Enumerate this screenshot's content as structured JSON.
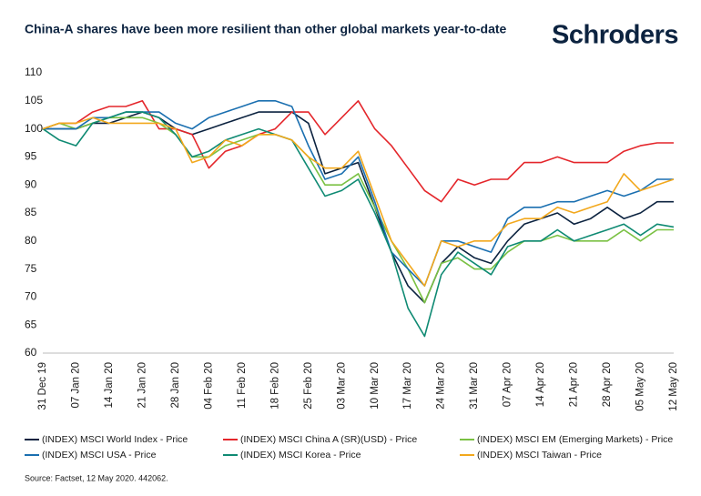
{
  "chart_data": {
    "type": "line",
    "title": "China-A shares have been more resilient than other global markets year-to-date",
    "logo": "Schroders",
    "source": "Source: Factset, 12 May 2020. 442062.",
    "categories": [
      "31 Dec 19",
      null,
      "07 Jan 20",
      null,
      "14 Jan 20",
      null,
      "21 Jan 20",
      null,
      "28 Jan 20",
      null,
      "04 Feb 20",
      null,
      "11 Feb 20",
      null,
      "18 Feb 20",
      null,
      "25 Feb 20",
      null,
      "03 Mar 20",
      null,
      "10 Mar 20",
      null,
      "17 Mar 20",
      null,
      "24 Mar 20",
      null,
      "31 Mar 20",
      null,
      "07 Apr 20",
      null,
      "14 Apr 20",
      null,
      "21 Apr 20",
      null,
      "28 Apr 20",
      null,
      "05 May 20",
      null,
      "12 May 20"
    ],
    "ylim": [
      60,
      110
    ],
    "yticks": [
      60,
      65,
      70,
      75,
      80,
      85,
      90,
      95,
      100,
      105,
      110
    ],
    "grid": false,
    "legend": "bottom",
    "series": [
      {
        "name": "(INDEX) MSCI World Index - Price",
        "color": "#0c2340",
        "values": [
          100,
          100,
          100,
          101,
          101,
          102,
          103,
          102,
          100,
          99,
          100,
          101,
          102,
          103,
          103,
          103,
          101,
          92,
          93,
          94,
          86,
          78,
          72,
          69,
          76,
          79,
          77,
          76,
          80,
          83,
          84,
          85,
          83,
          84,
          86,
          84,
          85,
          87,
          87
        ]
      },
      {
        "name": "(INDEX) MSCI China A (SR)(USD) - Price",
        "color": "#e4262b",
        "values": [
          100,
          101,
          101,
          103,
          104,
          104,
          105,
          100,
          100,
          99,
          93,
          96,
          97,
          99,
          100,
          103,
          103,
          99,
          102,
          105,
          100,
          97,
          93,
          89,
          87,
          91,
          90,
          91,
          91,
          94,
          94,
          95,
          94,
          94,
          94,
          96,
          97,
          97.5,
          97.5
        ]
      },
      {
        "name": "(INDEX) MSCI EM (Emerging Markets) - Price",
        "color": "#7ac143",
        "values": [
          100,
          101,
          100,
          101,
          102,
          102,
          102,
          101,
          99,
          95,
          95,
          97,
          98,
          99,
          99,
          98,
          95,
          90,
          90,
          92,
          86,
          80,
          75,
          69,
          76,
          77,
          75,
          75,
          78,
          80,
          80,
          81,
          80,
          80,
          80,
          82,
          80,
          82,
          82
        ]
      },
      {
        "name": "(INDEX) MSCI USA - Price",
        "color": "#1a6fb0",
        "values": [
          100,
          100,
          100,
          102,
          102,
          103,
          103,
          103,
          101,
          100,
          102,
          103,
          104,
          105,
          105,
          104,
          97,
          91,
          92,
          95,
          87,
          78,
          75,
          72,
          80,
          80,
          79,
          78,
          84,
          86,
          86,
          87,
          87,
          88,
          89,
          88,
          89,
          91,
          91
        ]
      },
      {
        "name": "(INDEX) MSCI Korea - Price",
        "color": "#0f8a73",
        "values": [
          100,
          98,
          97,
          101,
          102,
          103,
          103,
          102,
          99,
          95,
          96,
          98,
          99,
          100,
          99,
          98,
          93,
          88,
          89,
          91,
          85,
          78,
          68,
          63,
          74,
          78,
          76,
          74,
          79,
          80,
          80,
          82,
          80,
          81,
          82,
          83,
          81,
          83,
          82.5
        ]
      },
      {
        "name": "(INDEX) MSCI Taiwan - Price",
        "color": "#f2a81d",
        "values": [
          100,
          101,
          101,
          102,
          101,
          101,
          101,
          101,
          100,
          94,
          95,
          98,
          97,
          99,
          99,
          98,
          95,
          93,
          93,
          96,
          88,
          80,
          76,
          72,
          80,
          79,
          80,
          80,
          83,
          84,
          84,
          86,
          85,
          86,
          87,
          92,
          89,
          90,
          91
        ]
      }
    ]
  }
}
